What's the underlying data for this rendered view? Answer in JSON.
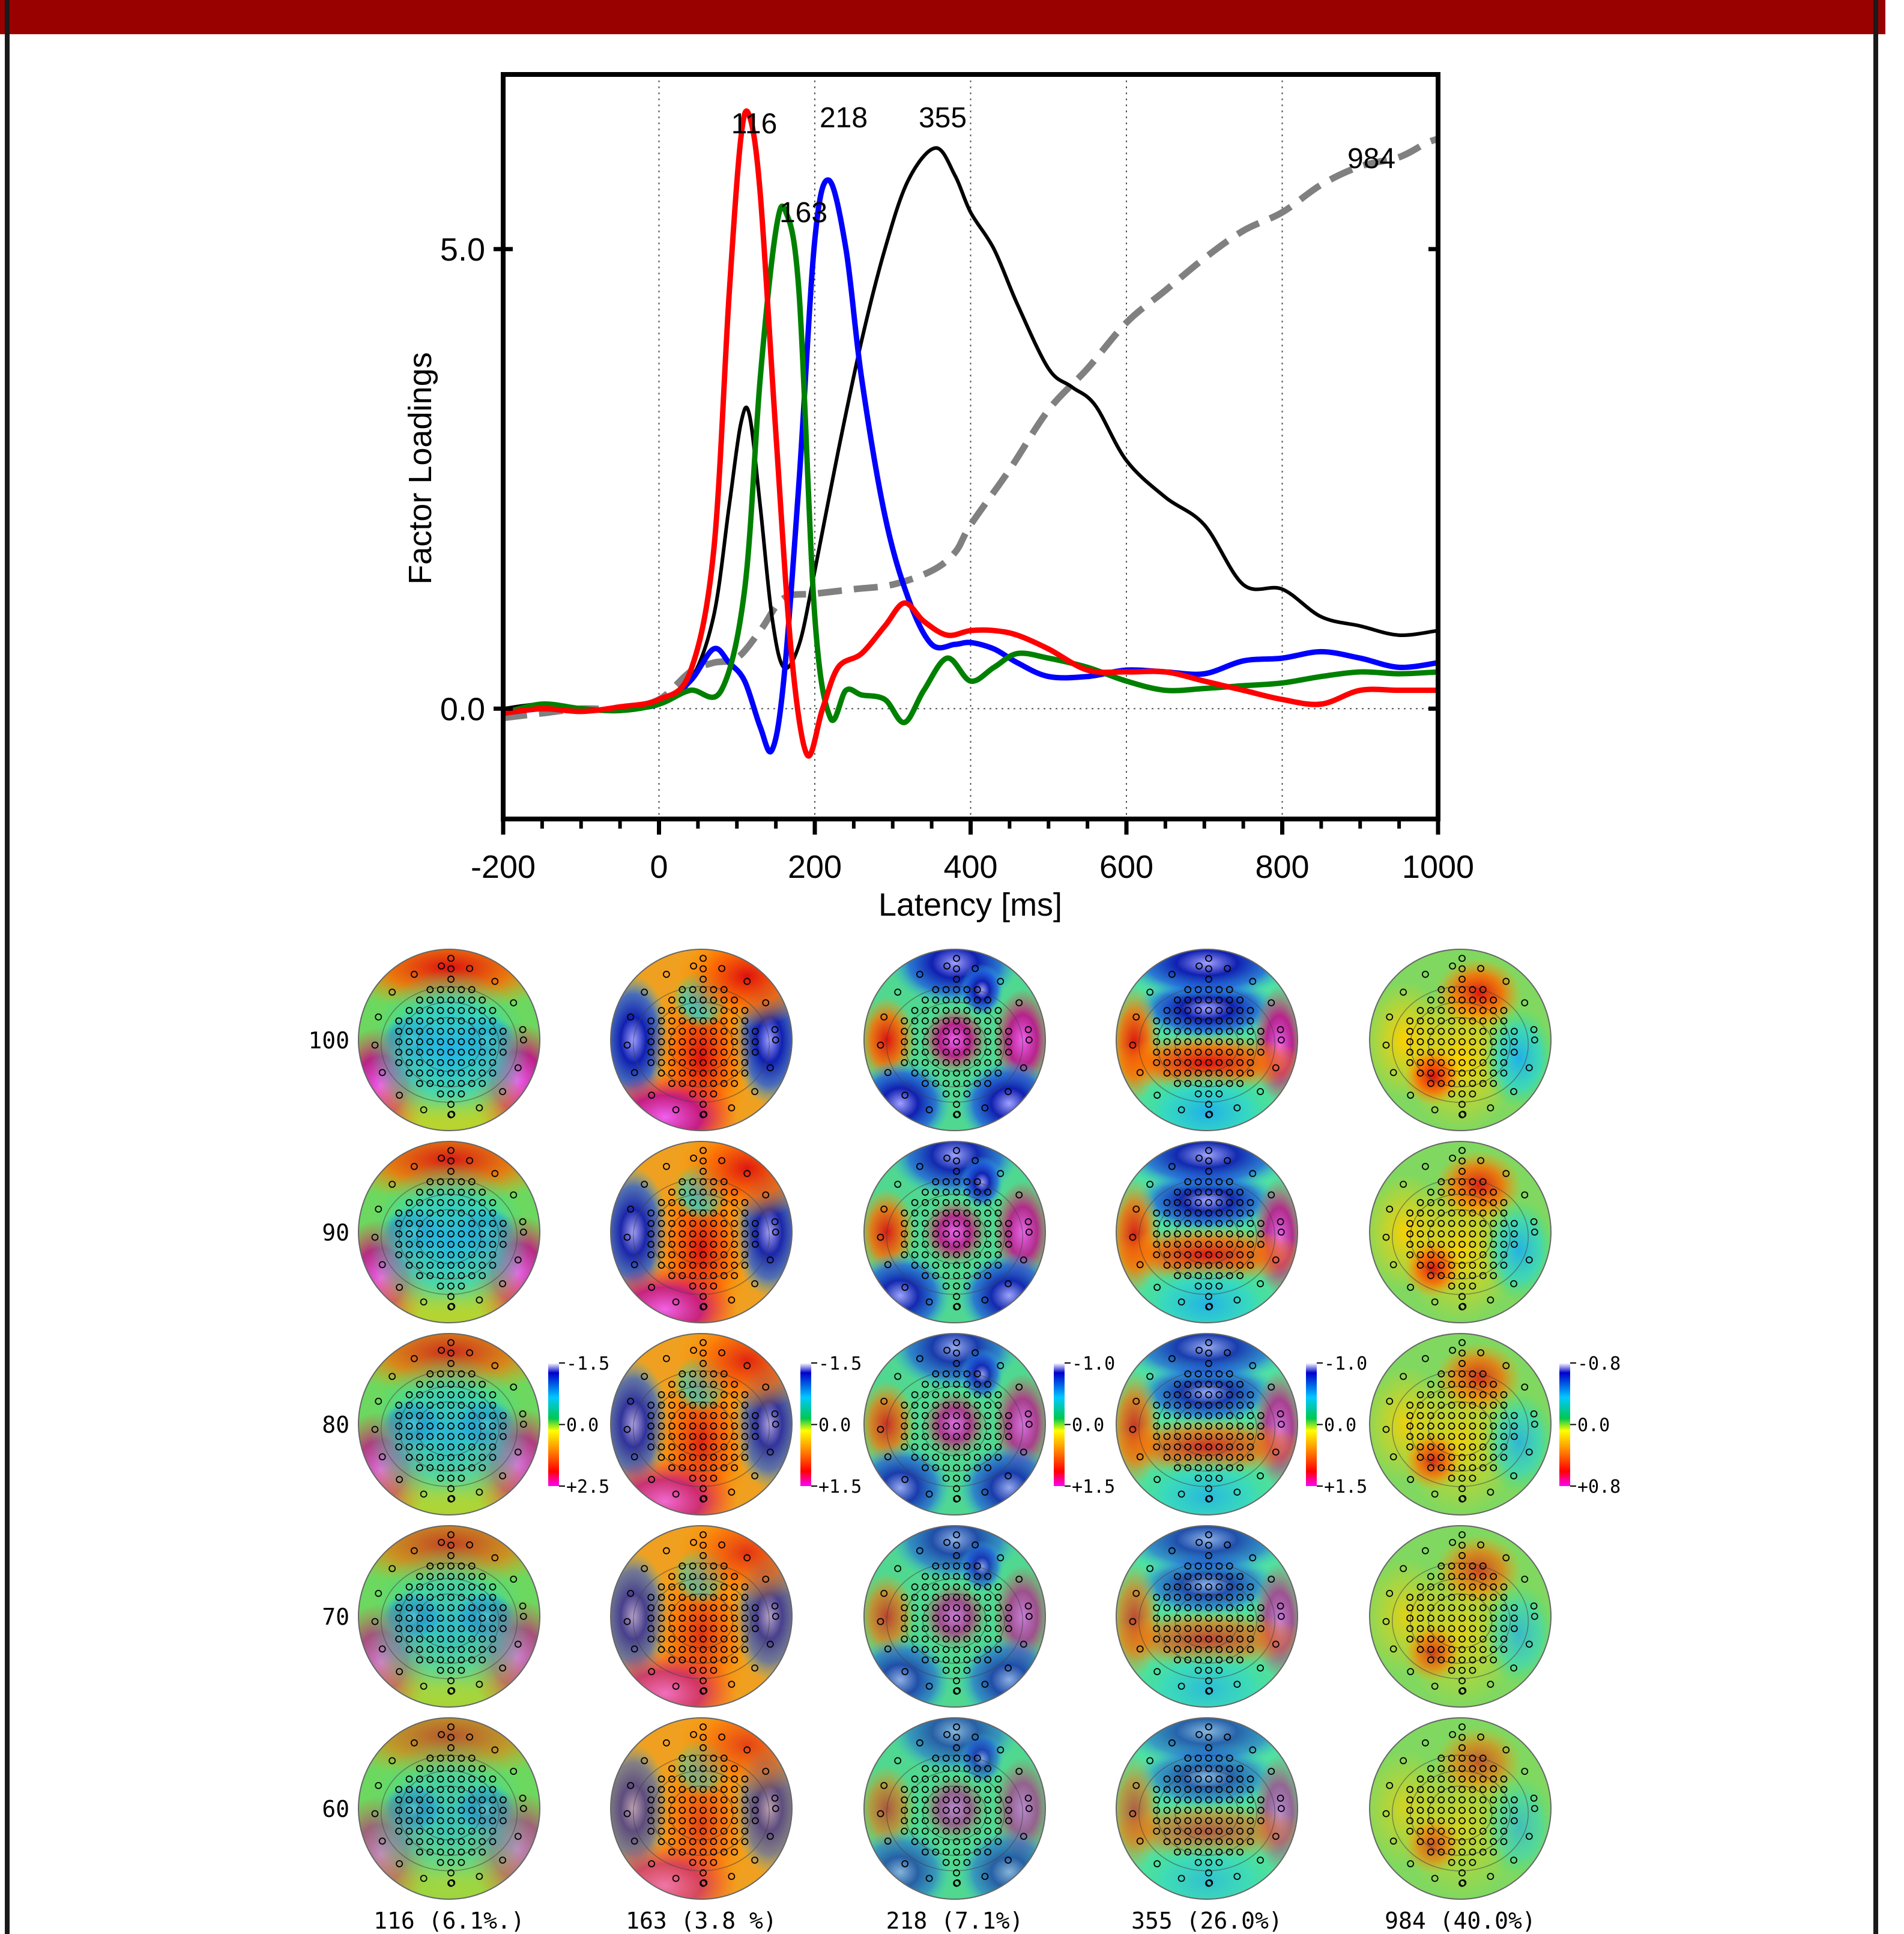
{
  "colors": {
    "banner": "#990000",
    "frame": "#1a1a1a",
    "series": {
      "116": "#ff0000",
      "163": "#008000",
      "218": "#0000ff",
      "355": "#000000",
      "984": "#808080"
    }
  },
  "chart_data": [
    {
      "type": "line",
      "title": "",
      "xlabel": "Latency [ms]",
      "ylabel": "Factor Loadings",
      "xlim": [
        -200,
        1000
      ],
      "ylim": [
        -1.2,
        6.9
      ],
      "xticks": [
        "-200",
        "0",
        "200",
        "400",
        "600",
        "800",
        "1000"
      ],
      "yticks": [
        "0.0",
        "5.0"
      ],
      "grid": "vertical dotted lines at 0, 200, 400, 600, 800; horizontal dotted line at 0",
      "series": [
        {
          "name": "116",
          "color": "#ff0000",
          "style": "solid",
          "x": [
            -200,
            -150,
            -100,
            -50,
            0,
            40,
            70,
            90,
            105,
            116,
            130,
            150,
            170,
            190,
            210,
            230,
            260,
            290,
            315,
            340,
            370,
            400,
            430,
            460,
            500,
            550,
            600,
            650,
            700,
            750,
            800,
            850,
            900,
            950,
            1000
          ],
          "y": [
            -0.05,
            0.0,
            -0.03,
            0.02,
            0.1,
            0.4,
            1.7,
            4.5,
            6.2,
            6.45,
            5.6,
            3.0,
            0.6,
            -0.5,
            0.0,
            0.45,
            0.6,
            0.9,
            1.15,
            0.95,
            0.8,
            0.85,
            0.85,
            0.8,
            0.65,
            0.42,
            0.4,
            0.4,
            0.3,
            0.2,
            0.1,
            0.05,
            0.2,
            0.2,
            0.2
          ]
        },
        {
          "name": "163",
          "color": "#008000",
          "style": "solid",
          "x": [
            -200,
            -150,
            -100,
            -50,
            0,
            40,
            80,
            110,
            130,
            150,
            163,
            180,
            200,
            220,
            240,
            260,
            290,
            315,
            340,
            370,
            400,
            430,
            460,
            500,
            550,
            600,
            650,
            700,
            750,
            800,
            850,
            900,
            950,
            1000
          ],
          "y": [
            -0.05,
            0.05,
            0.0,
            -0.02,
            0.05,
            0.2,
            0.2,
            1.3,
            3.6,
            5.2,
            5.4,
            4.5,
            1.0,
            -0.1,
            0.2,
            0.15,
            0.1,
            -0.15,
            0.2,
            0.55,
            0.3,
            0.45,
            0.6,
            0.55,
            0.45,
            0.3,
            0.2,
            0.22,
            0.25,
            0.28,
            0.35,
            0.4,
            0.38,
            0.4
          ]
        },
        {
          "name": "218",
          "color": "#0000ff",
          "style": "solid",
          "x": [
            -200,
            -150,
            -100,
            -50,
            0,
            40,
            70,
            90,
            110,
            130,
            145,
            160,
            180,
            200,
            218,
            240,
            260,
            290,
            320,
            350,
            380,
            400,
            430,
            460,
            500,
            550,
            600,
            650,
            700,
            750,
            800,
            850,
            900,
            950,
            1000
          ],
          "y": [
            -0.05,
            0.0,
            -0.02,
            0.0,
            0.05,
            0.3,
            0.65,
            0.5,
            0.3,
            -0.2,
            -0.45,
            0.3,
            2.5,
            5.1,
            5.75,
            5.0,
            3.6,
            2.1,
            1.2,
            0.7,
            0.7,
            0.72,
            0.65,
            0.5,
            0.35,
            0.35,
            0.42,
            0.4,
            0.38,
            0.52,
            0.55,
            0.62,
            0.55,
            0.45,
            0.5
          ]
        },
        {
          "name": "355",
          "color": "#000000",
          "style": "solid",
          "x": [
            -200,
            -150,
            -100,
            -50,
            0,
            40,
            70,
            90,
            105,
            116,
            130,
            145,
            160,
            180,
            200,
            230,
            260,
            290,
            320,
            355,
            380,
            400,
            430,
            460,
            500,
            530,
            560,
            600,
            650,
            700,
            750,
            800,
            850,
            900,
            950,
            1000
          ],
          "y": [
            0.0,
            0.05,
            0.0,
            0.0,
            0.05,
            0.3,
            1.0,
            2.2,
            3.1,
            3.2,
            2.2,
            1.0,
            0.45,
            0.7,
            1.5,
            2.8,
            4.0,
            5.0,
            5.75,
            6.1,
            5.8,
            5.4,
            5.0,
            4.4,
            3.7,
            3.5,
            3.3,
            2.7,
            2.3,
            2.0,
            1.35,
            1.3,
            1.0,
            0.9,
            0.8,
            0.85
          ]
        },
        {
          "name": "984",
          "color": "#808080",
          "style": "dashed",
          "x": [
            -200,
            -150,
            -100,
            -50,
            0,
            40,
            70,
            100,
            130,
            160,
            200,
            250,
            300,
            350,
            380,
            400,
            450,
            500,
            550,
            600,
            650,
            700,
            750,
            800,
            850,
            900,
            950,
            984,
            1000
          ],
          "y": [
            -0.1,
            -0.05,
            0.0,
            0.0,
            0.1,
            0.4,
            0.5,
            0.55,
            0.85,
            1.2,
            1.25,
            1.3,
            1.35,
            1.5,
            1.7,
            2.0,
            2.6,
            3.25,
            3.7,
            4.2,
            4.55,
            4.9,
            5.2,
            5.4,
            5.7,
            5.9,
            6.0,
            6.15,
            6.2
          ]
        }
      ],
      "annotations": [
        "116",
        "163",
        "218",
        "355",
        "984"
      ]
    },
    {
      "type": "heatmap",
      "description_kind": "scalp topographic map grid",
      "row_labels": [
        "100",
        "90",
        "80",
        "70",
        "60"
      ],
      "column_labels": [
        "116  (6.1%.)",
        "163  (3.8 %)",
        "218  (7.1%)",
        "355 (26.0%)",
        "984 (40.0%)"
      ],
      "colorbars": [
        {
          "top": "-1.5",
          "mid": "0.0",
          "bottom": "+2.5"
        },
        {
          "top": "-1.5",
          "mid": "0.0",
          "bottom": "+1.5"
        },
        {
          "top": "-1.0",
          "mid": "0.0",
          "bottom": "+1.5"
        },
        {
          "top": "-1.0",
          "mid": "0.0",
          "bottom": "+1.5"
        },
        {
          "top": "-0.8",
          "mid": "0.0",
          "bottom": "+0.8"
        }
      ]
    }
  ]
}
